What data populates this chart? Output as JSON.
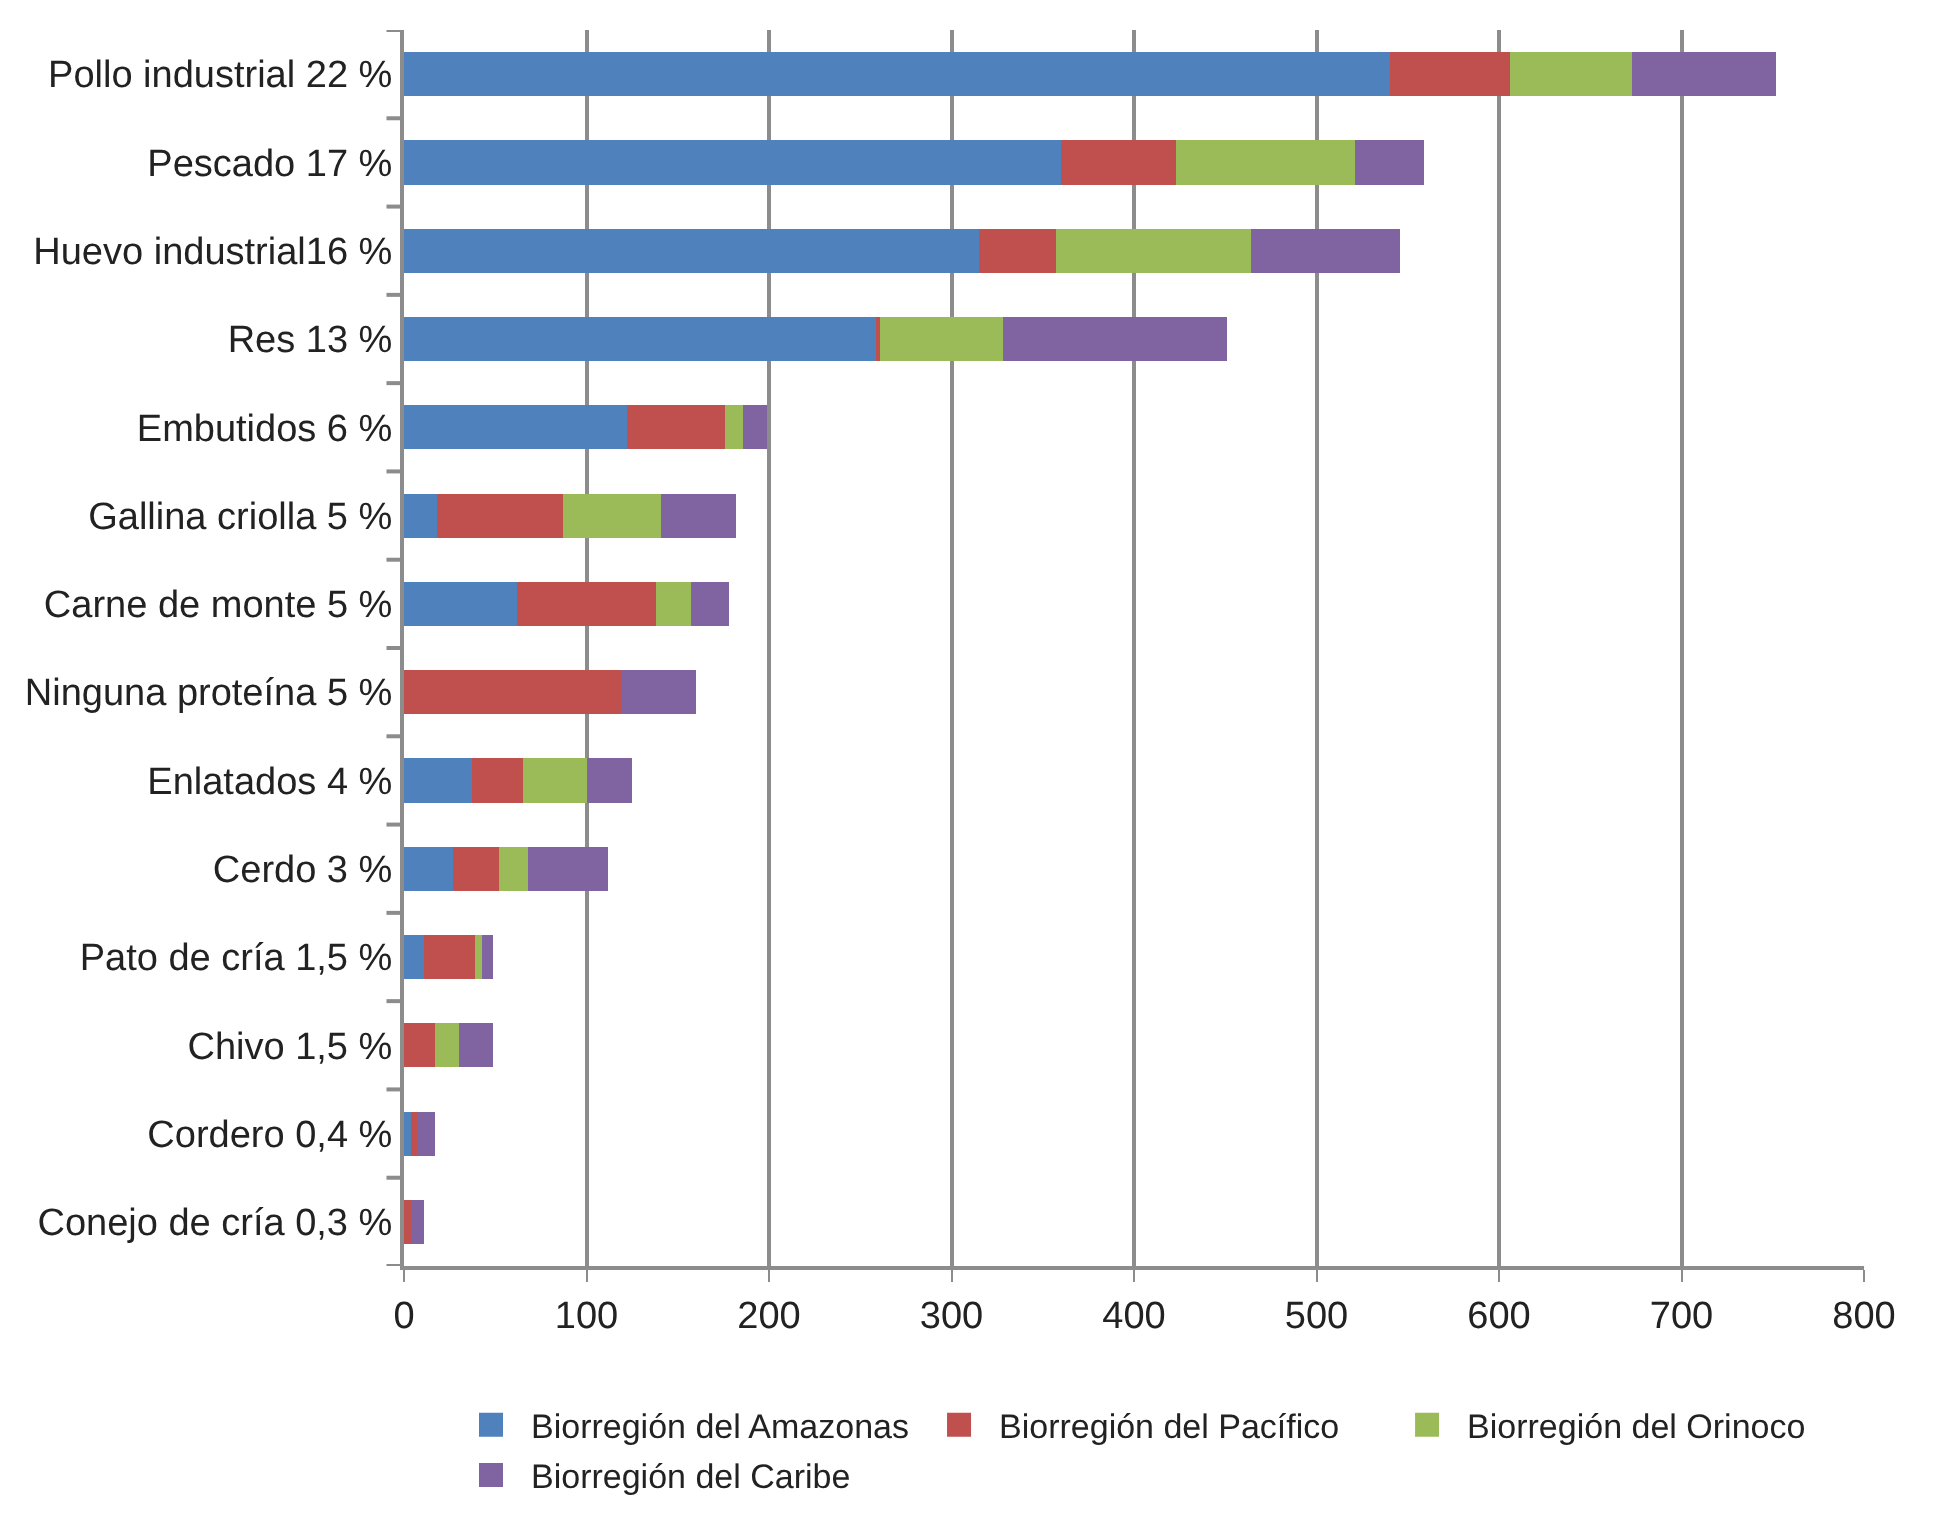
{
  "chart_data": {
    "type": "bar",
    "orientation": "horizontal",
    "stacked": true,
    "categories": [
      "Pollo industrial 22 %",
      "Pescado 17 %",
      "Huevo industrial16 %",
      "Res 13 %",
      "Embutidos 6 %",
      "Gallina criolla 5 %",
      "Carne de monte 5 %",
      "Ninguna proteína 5 %",
      "Enlatados 4 %",
      "Cerdo 3 %",
      "Pato de cría 1,5 %",
      "Chivo 1,5 %",
      "Cordero 0,4 %",
      "Conejo de cría 0,3 %"
    ],
    "series": [
      {
        "name": "Biorregión del Amazonas",
        "color": "#4f81bd",
        "values": [
          540,
          360,
          315,
          259,
          122,
          18,
          62,
          0,
          37,
          27,
          11,
          0,
          4,
          0
        ]
      },
      {
        "name": "Biorregión del Pacífico",
        "color": "#c0504d",
        "values": [
          66,
          63,
          42,
          2,
          54,
          69,
          76,
          119,
          28,
          25,
          28,
          17,
          3,
          4
        ]
      },
      {
        "name": "Biorregión del Orinoco",
        "color": "#9bbb59",
        "values": [
          67,
          98,
          107,
          67,
          10,
          54,
          19,
          0,
          35,
          16,
          4,
          13,
          0,
          0
        ]
      },
      {
        "name": "Biorregión del Caribe",
        "color": "#8064a2",
        "values": [
          79,
          38,
          82,
          123,
          13,
          41,
          21,
          41,
          25,
          44,
          6,
          19,
          10,
          7
        ]
      }
    ],
    "xlim": [
      0,
      800
    ],
    "xticks": [
      0,
      100,
      200,
      300,
      400,
      500,
      600,
      700,
      800
    ],
    "grid": "x",
    "legend": "bottom"
  }
}
